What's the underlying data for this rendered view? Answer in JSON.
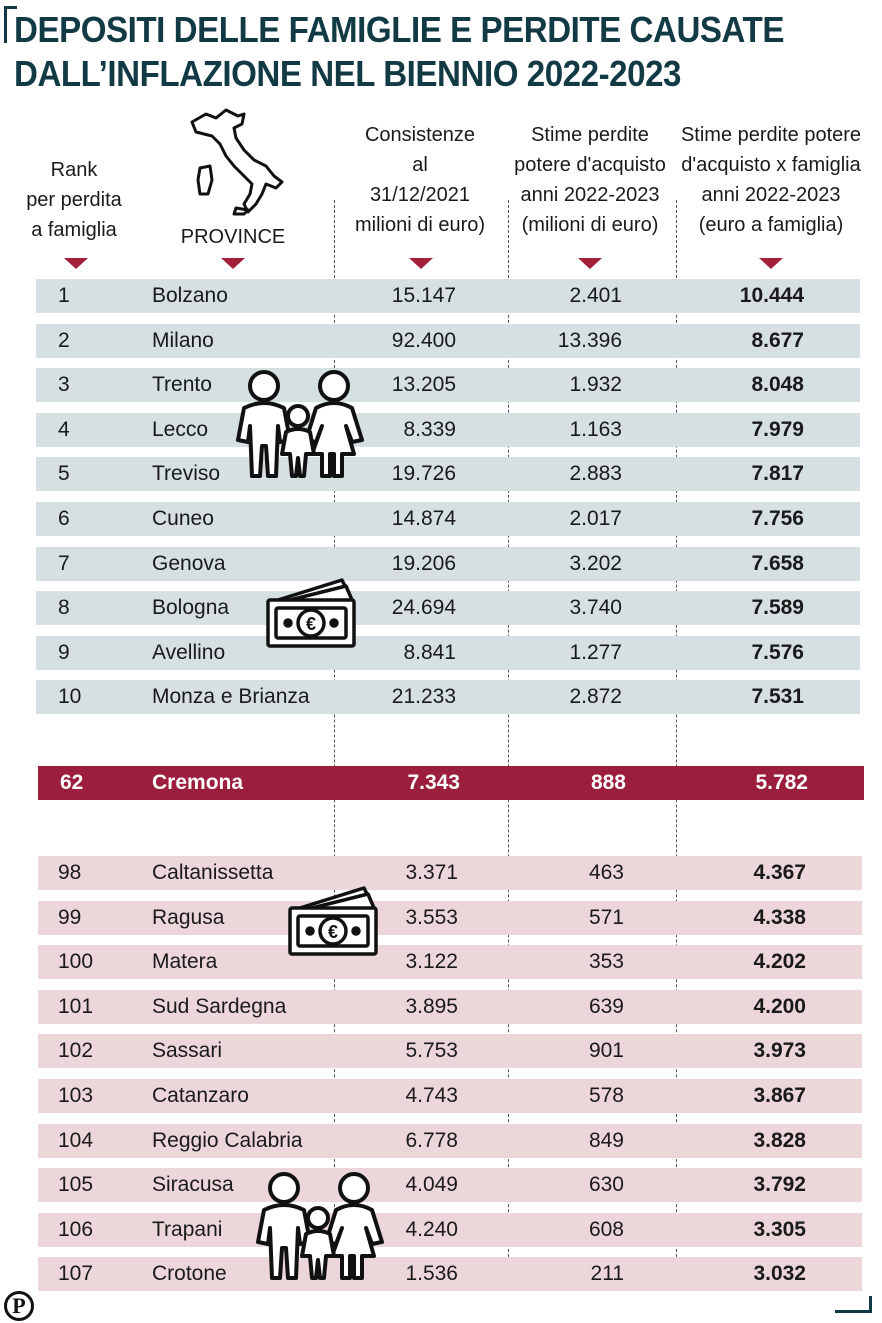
{
  "title": {
    "line1": "DEPOSITI DELLE FAMIGLIE E PERDITE CAUSATE",
    "line2": "DALL’INFLAZIONE NEL BIENNIO 2022-2023"
  },
  "headers": {
    "rank": [
      "Rank",
      "per perdita",
      "a famiglia"
    ],
    "province": [
      "PROVINCE"
    ],
    "consistenze": [
      "Consistenze",
      "al",
      "31/12/2021",
      "milioni di euro)"
    ],
    "perdite": [
      "Stime perdite",
      "potere d'acquisto",
      "anni 2022-2023",
      "(milioni di euro)"
    ],
    "famiglia": [
      "Stime perdite potere",
      "d'acquisto x famiglia",
      "anni 2022-2023",
      "(euro a famiglia)"
    ]
  },
  "top_rows": [
    {
      "rank": "1",
      "province": "Bolzano",
      "consistenze": "15.147",
      "perdite": "2.401",
      "famiglia": "10.444"
    },
    {
      "rank": "2",
      "province": "Milano",
      "consistenze": "92.400",
      "perdite": "13.396",
      "famiglia": "8.677"
    },
    {
      "rank": "3",
      "province": "Trento",
      "consistenze": "13.205",
      "perdite": "1.932",
      "famiglia": "8.048"
    },
    {
      "rank": "4",
      "province": "Lecco",
      "consistenze": "8.339",
      "perdite": "1.163",
      "famiglia": "7.979"
    },
    {
      "rank": "5",
      "province": "Treviso",
      "consistenze": "19.726",
      "perdite": "2.883",
      "famiglia": "7.817"
    },
    {
      "rank": "6",
      "province": "Cuneo",
      "consistenze": "14.874",
      "perdite": "2.017",
      "famiglia": "7.756"
    },
    {
      "rank": "7",
      "province": "Genova",
      "consistenze": "19.206",
      "perdite": "3.202",
      "famiglia": "7.658"
    },
    {
      "rank": "8",
      "province": "Bologna",
      "consistenze": "24.694",
      "perdite": "3.740",
      "famiglia": "7.589"
    },
    {
      "rank": "9",
      "province": "Avellino",
      "consistenze": "8.841",
      "perdite": "1.277",
      "famiglia": "7.576"
    },
    {
      "rank": "10",
      "province": "Monza e Brianza",
      "consistenze": "21.233",
      "perdite": "2.872",
      "famiglia": "7.531"
    }
  ],
  "highlight_row": {
    "rank": "62",
    "province": "Cremona",
    "consistenze": "7.343",
    "perdite": "888",
    "famiglia": "5.782"
  },
  "bottom_rows": [
    {
      "rank": "98",
      "province": "Caltanissetta",
      "consistenze": "3.371",
      "perdite": "463",
      "famiglia": "4.367"
    },
    {
      "rank": "99",
      "province": "Ragusa",
      "consistenze": "3.553",
      "perdite": "571",
      "famiglia": "4.338"
    },
    {
      "rank": "100",
      "province": "Matera",
      "consistenze": "3.122",
      "perdite": "353",
      "famiglia": "4.202"
    },
    {
      "rank": "101",
      "province": "Sud Sardegna",
      "consistenze": "3.895",
      "perdite": "639",
      "famiglia": "4.200"
    },
    {
      "rank": "102",
      "province": "Sassari",
      "consistenze": "5.753",
      "perdite": "901",
      "famiglia": "3.973"
    },
    {
      "rank": "103",
      "province": "Catanzaro",
      "consistenze": "4.743",
      "perdite": "578",
      "famiglia": "3.867"
    },
    {
      "rank": "104",
      "province": "Reggio Calabria",
      "consistenze": "6.778",
      "perdite": "849",
      "famiglia": "3.828"
    },
    {
      "rank": "105",
      "province": "Siracusa",
      "consistenze": "4.049",
      "perdite": "630",
      "famiglia": "3.792"
    },
    {
      "rank": "106",
      "province": "Trapani",
      "consistenze": "4.240",
      "perdite": "608",
      "famiglia": "3.305"
    },
    {
      "rank": "107",
      "province": "Crotone",
      "consistenze": "1.536",
      "perdite": "211",
      "famiglia": "3.032"
    }
  ],
  "colors": {
    "title": "#123a45",
    "accent": "#a3203a",
    "highlight_row": "#9b1f3c",
    "top_row_bg": "#d6dfe2",
    "bottom_row_bg": "#ecd6da"
  },
  "icons": [
    "italy-map-icon",
    "family-icon",
    "banknote-euro-icon",
    "publisher-logo"
  ],
  "logo_letter": "P"
}
